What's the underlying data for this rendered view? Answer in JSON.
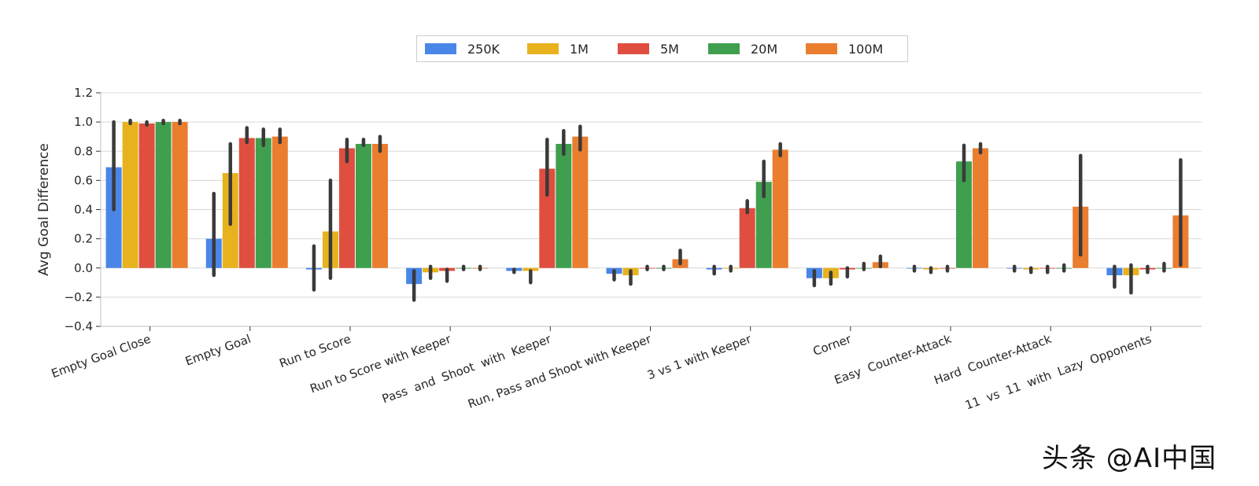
{
  "chart_data": {
    "type": "bar",
    "title": "",
    "xlabel": "",
    "ylabel": "Avg Goal Difference",
    "ylim": [
      -0.4,
      1.2
    ],
    "yticks": [
      -0.4,
      -0.2,
      0.0,
      0.2,
      0.4,
      0.6,
      0.8,
      1.0,
      1.2
    ],
    "ytick_labels": [
      "−0.4",
      "−0.2",
      "0.0",
      "0.2",
      "0.4",
      "0.6",
      "0.8",
      "1.0",
      "1.2"
    ],
    "grid": "horizontal",
    "legend_position": "top-center",
    "categories": [
      "Empty Goal Close",
      "Empty Goal",
      "Run to Score",
      "Run to Score with Keeper",
      "Pass  and  Shoot  with  Keeper",
      "Run, Pass and Shoot with Keeper",
      "3 vs 1 with Keeper",
      "Corner",
      "Easy  Counter-Attack",
      "Hard  Counter-Attack",
      "11  vs  11  with  Lazy  Opponents"
    ],
    "series": [
      {
        "name": "250K",
        "color": "#4a86e8",
        "values": [
          0.69,
          0.2,
          -0.01,
          -0.11,
          -0.02,
          -0.04,
          -0.01,
          -0.07,
          0.0,
          0.0,
          -0.05
        ],
        "err_low": [
          0.4,
          -0.05,
          -0.15,
          -0.22,
          -0.03,
          -0.08,
          -0.04,
          -0.12,
          -0.02,
          -0.02,
          -0.13
        ],
        "err_high": [
          1.0,
          0.51,
          0.15,
          -0.02,
          -0.01,
          -0.02,
          0.01,
          -0.02,
          0.01,
          0.01,
          0.01
        ]
      },
      {
        "name": "1M",
        "color": "#e8b21e",
        "values": [
          1.0,
          0.65,
          0.25,
          -0.03,
          -0.02,
          -0.05,
          0.0,
          -0.07,
          -0.01,
          -0.01,
          -0.05
        ],
        "err_low": [
          0.99,
          0.3,
          -0.07,
          -0.07,
          -0.1,
          -0.11,
          -0.02,
          -0.11,
          -0.03,
          -0.03,
          -0.17
        ],
        "err_high": [
          1.01,
          0.85,
          0.6,
          0.01,
          -0.02,
          -0.02,
          0.01,
          -0.03,
          0.0,
          0.0,
          0.02
        ]
      },
      {
        "name": "5M",
        "color": "#e04e3f",
        "values": [
          0.99,
          0.89,
          0.82,
          -0.02,
          0.68,
          0.0,
          0.41,
          -0.01,
          0.0,
          0.0,
          -0.01
        ],
        "err_low": [
          0.98,
          0.86,
          0.73,
          -0.09,
          0.5,
          -0.01,
          0.38,
          -0.06,
          -0.02,
          -0.03,
          -0.03
        ],
        "err_high": [
          1.0,
          0.96,
          0.88,
          -0.01,
          0.88,
          0.01,
          0.46,
          0.0,
          0.01,
          0.01,
          0.01
        ]
      },
      {
        "name": "20M",
        "color": "#3f9f4f",
        "values": [
          1.0,
          0.89,
          0.85,
          0.0,
          0.85,
          0.0,
          0.59,
          0.0,
          0.73,
          0.0,
          0.0
        ],
        "err_low": [
          0.99,
          0.84,
          0.84,
          -0.01,
          0.78,
          -0.01,
          0.49,
          -0.01,
          0.6,
          -0.02,
          -0.02
        ],
        "err_high": [
          1.01,
          0.95,
          0.88,
          0.01,
          0.94,
          0.01,
          0.73,
          0.03,
          0.84,
          0.02,
          0.03
        ]
      },
      {
        "name": "100M",
        "color": "#ea7d2e",
        "values": [
          1.0,
          0.9,
          0.85,
          0.0,
          0.9,
          0.06,
          0.81,
          0.04,
          0.82,
          0.42,
          0.36
        ],
        "err_low": [
          0.99,
          0.86,
          0.8,
          -0.01,
          0.81,
          0.03,
          0.77,
          0.01,
          0.79,
          0.09,
          0.02
        ],
        "err_high": [
          1.01,
          0.95,
          0.9,
          0.01,
          0.97,
          0.12,
          0.85,
          0.08,
          0.85,
          0.77,
          0.74
        ]
      }
    ]
  },
  "watermark": {
    "text": "头条 @AI中国"
  }
}
